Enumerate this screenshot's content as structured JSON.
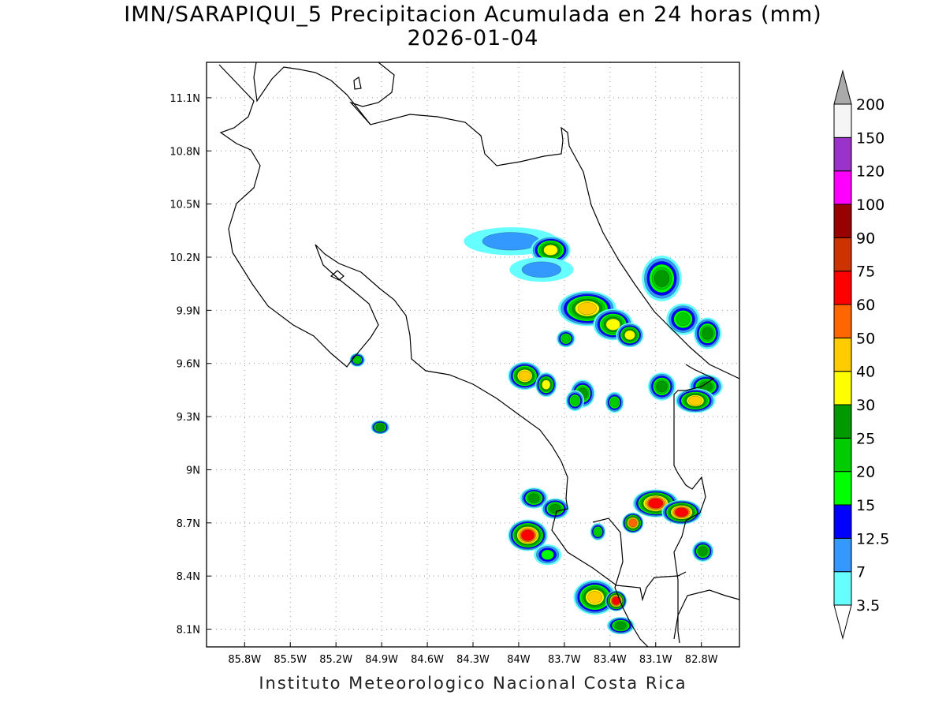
{
  "header": {
    "title": "IMN/SARAPIQUI_5 Precipitacion Acumulada en 24 horas (mm)",
    "date": "2026-01-04"
  },
  "footer": {
    "credit": "Instituto Meteorologico Nacional Costa Rica"
  },
  "map": {
    "lon_range": [
      -86.05,
      -82.55
    ],
    "lat_range": [
      8.0,
      11.3
    ],
    "lon_ticks": [
      {
        "value": -85.8,
        "label": "85.8W"
      },
      {
        "value": -85.5,
        "label": "85.5W"
      },
      {
        "value": -85.2,
        "label": "85.2W"
      },
      {
        "value": -84.9,
        "label": "84.9W"
      },
      {
        "value": -84.6,
        "label": "84.6W"
      },
      {
        "value": -84.3,
        "label": "84.3W"
      },
      {
        "value": -84.0,
        "label": "84W"
      },
      {
        "value": -83.7,
        "label": "83.7W"
      },
      {
        "value": -83.4,
        "label": "83.4W"
      },
      {
        "value": -83.1,
        "label": "83.1W"
      },
      {
        "value": -82.8,
        "label": "82.8W"
      }
    ],
    "lat_ticks": [
      {
        "value": 11.1,
        "label": "11.1N"
      },
      {
        "value": 10.8,
        "label": "10.8N"
      },
      {
        "value": 10.5,
        "label": "10.5N"
      },
      {
        "value": 10.2,
        "label": "10.2N"
      },
      {
        "value": 9.9,
        "label": "9.9N"
      },
      {
        "value": 9.6,
        "label": "9.6N"
      },
      {
        "value": 9.3,
        "label": "9.3N"
      },
      {
        "value": 9.0,
        "label": "9N"
      },
      {
        "value": 8.7,
        "label": "8.7N"
      },
      {
        "value": 8.4,
        "label": "8.4N"
      },
      {
        "value": 8.1,
        "label": "8.1N"
      }
    ],
    "grid": true
  },
  "colorbar": {
    "levels": [
      {
        "label": "3.5",
        "color": "#66ffff"
      },
      {
        "label": "7",
        "color": "#3399ff"
      },
      {
        "label": "12.5",
        "color": "#0000ff"
      },
      {
        "label": "15",
        "color": "#00ff00"
      },
      {
        "label": "20",
        "color": "#00cc00"
      },
      {
        "label": "25",
        "color": "#009900"
      },
      {
        "label": "30",
        "color": "#ffff00"
      },
      {
        "label": "40",
        "color": "#ffcc00"
      },
      {
        "label": "50",
        "color": "#ff6600"
      },
      {
        "label": "60",
        "color": "#ff0000"
      },
      {
        "label": "75",
        "color": "#cc3300"
      },
      {
        "label": "90",
        "color": "#990000"
      },
      {
        "label": "100",
        "color": "#ff00ff"
      },
      {
        "label": "120",
        "color": "#9933cc"
      },
      {
        "label": "150",
        "color": "#f5f5f5"
      },
      {
        "label": "200",
        "color": "#aaaaaa"
      }
    ]
  },
  "precip_cells": [
    {
      "lon": -84.05,
      "lat": 10.29,
      "mm": 7,
      "rx": 0.3,
      "ry": 0.07
    },
    {
      "lon": -83.79,
      "lat": 10.24,
      "mm": 30,
      "rx": 0.12,
      "ry": 0.07
    },
    {
      "lon": -83.85,
      "lat": 10.13,
      "mm": 7,
      "rx": 0.2,
      "ry": 0.06
    },
    {
      "lon": -83.55,
      "lat": 9.91,
      "mm": 40,
      "rx": 0.18,
      "ry": 0.09
    },
    {
      "lon": -83.38,
      "lat": 9.82,
      "mm": 30,
      "rx": 0.12,
      "ry": 0.08
    },
    {
      "lon": -83.27,
      "lat": 9.76,
      "mm": 30,
      "rx": 0.08,
      "ry": 0.06
    },
    {
      "lon": -83.69,
      "lat": 9.74,
      "mm": 20,
      "rx": 0.05,
      "ry": 0.04
    },
    {
      "lon": -83.06,
      "lat": 10.08,
      "mm": 25,
      "rx": 0.12,
      "ry": 0.12
    },
    {
      "lon": -82.92,
      "lat": 9.85,
      "mm": 20,
      "rx": 0.1,
      "ry": 0.08
    },
    {
      "lon": -82.76,
      "lat": 9.77,
      "mm": 25,
      "rx": 0.08,
      "ry": 0.08
    },
    {
      "lon": -83.96,
      "lat": 9.53,
      "mm": 40,
      "rx": 0.1,
      "ry": 0.07
    },
    {
      "lon": -83.82,
      "lat": 9.48,
      "mm": 30,
      "rx": 0.06,
      "ry": 0.06
    },
    {
      "lon": -83.58,
      "lat": 9.43,
      "mm": 25,
      "rx": 0.07,
      "ry": 0.07
    },
    {
      "lon": -83.63,
      "lat": 9.39,
      "mm": 20,
      "rx": 0.05,
      "ry": 0.05
    },
    {
      "lon": -83.37,
      "lat": 9.38,
      "mm": 20,
      "rx": 0.05,
      "ry": 0.05
    },
    {
      "lon": -83.06,
      "lat": 9.47,
      "mm": 25,
      "rx": 0.08,
      "ry": 0.07
    },
    {
      "lon": -82.77,
      "lat": 9.47,
      "mm": 25,
      "rx": 0.1,
      "ry": 0.06
    },
    {
      "lon": -82.84,
      "lat": 9.39,
      "mm": 40,
      "rx": 0.12,
      "ry": 0.06
    },
    {
      "lon": -84.91,
      "lat": 9.24,
      "mm": 25,
      "rx": 0.05,
      "ry": 0.03
    },
    {
      "lon": -85.06,
      "lat": 9.62,
      "mm": 20,
      "rx": 0.04,
      "ry": 0.03
    },
    {
      "lon": -83.9,
      "lat": 8.84,
      "mm": 25,
      "rx": 0.08,
      "ry": 0.05
    },
    {
      "lon": -83.76,
      "lat": 8.78,
      "mm": 25,
      "rx": 0.08,
      "ry": 0.05
    },
    {
      "lon": -83.94,
      "lat": 8.63,
      "mm": 60,
      "rx": 0.12,
      "ry": 0.08
    },
    {
      "lon": -83.81,
      "lat": 8.52,
      "mm": 15,
      "rx": 0.08,
      "ry": 0.05
    },
    {
      "lon": -83.1,
      "lat": 8.81,
      "mm": 60,
      "rx": 0.14,
      "ry": 0.07
    },
    {
      "lon": -82.93,
      "lat": 8.76,
      "mm": 60,
      "rx": 0.12,
      "ry": 0.06
    },
    {
      "lon": -83.25,
      "lat": 8.7,
      "mm": 50,
      "rx": 0.06,
      "ry": 0.05
    },
    {
      "lon": -82.79,
      "lat": 8.54,
      "mm": 25,
      "rx": 0.06,
      "ry": 0.05
    },
    {
      "lon": -83.5,
      "lat": 8.28,
      "mm": 40,
      "rx": 0.13,
      "ry": 0.09
    },
    {
      "lon": -83.36,
      "lat": 8.26,
      "mm": 60,
      "rx": 0.06,
      "ry": 0.05
    },
    {
      "lon": -83.33,
      "lat": 8.12,
      "mm": 25,
      "rx": 0.08,
      "ry": 0.04
    },
    {
      "lon": -83.48,
      "lat": 8.65,
      "mm": 20,
      "rx": 0.04,
      "ry": 0.04
    }
  ]
}
